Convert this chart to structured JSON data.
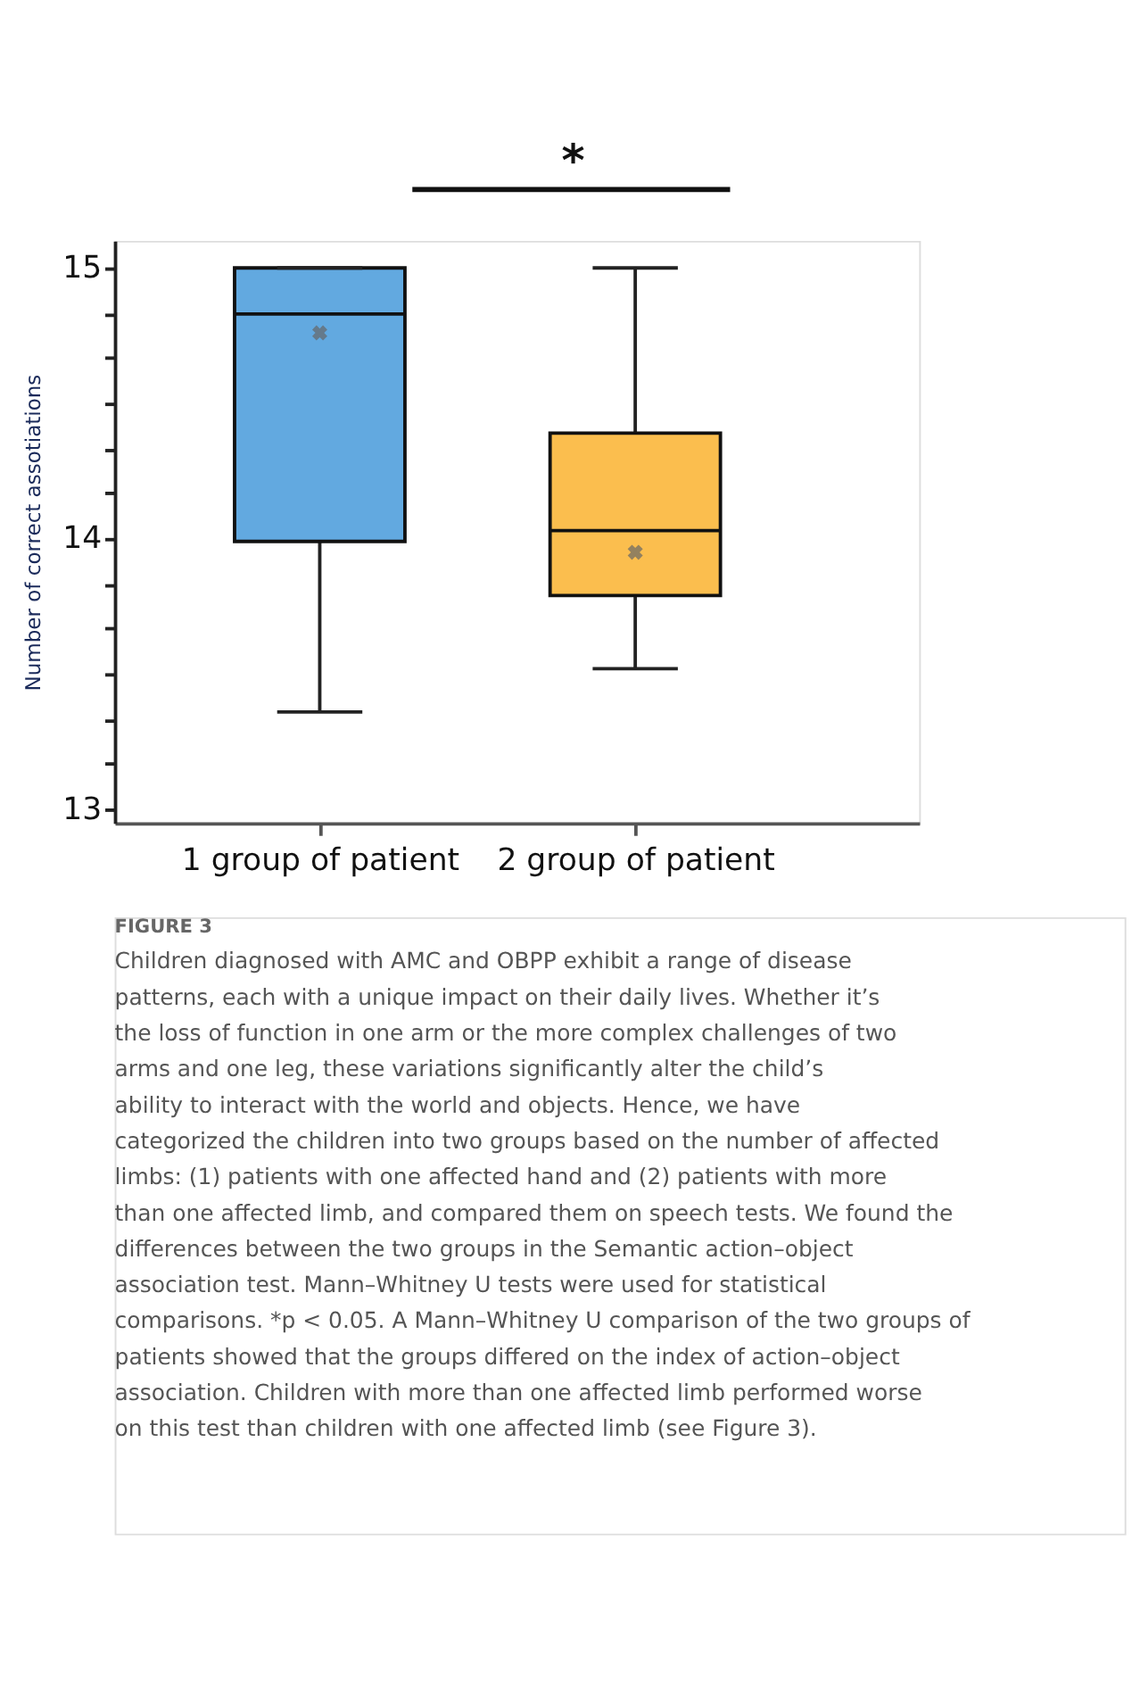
{
  "chart_data": {
    "type": "box",
    "ylabel": "Number of correct assotiations",
    "categories": [
      "1 group of patient",
      "2 group of patient"
    ],
    "colors": [
      "#62a9e0",
      "#fbbe4e"
    ],
    "boxes": [
      {
        "low": 13.36,
        "q1": 13.99,
        "median": 14.83,
        "q3": 15.0,
        "high": 15.0,
        "mean": 14.76
      },
      {
        "low": 13.52,
        "q1": 13.79,
        "median": 14.03,
        "q3": 14.39,
        "high": 15.0,
        "mean": 13.95
      }
    ],
    "ylim": [
      12.95,
      15.1
    ],
    "yticks": [
      13,
      {
        "value": 13.17,
        "label": null
      },
      {
        "value": 13.33,
        "label": null
      },
      {
        "value": 13.5,
        "label": null
      },
      {
        "value": 13.67,
        "label": null
      },
      {
        "value": 13.83,
        "label": null
      },
      14,
      {
        "value": 14.17,
        "label": null
      },
      {
        "value": 14.33,
        "label": null
      },
      {
        "value": 14.5,
        "label": null
      },
      {
        "value": 14.67,
        "label": null
      },
      {
        "value": 14.83,
        "label": null
      },
      15
    ],
    "grid": false,
    "annotations": [
      "*",
      "FIGURE 3",
      "Children diagnosed with AMC and OBPP exhibit a range of disease patterns, each with a unique impact on their daily lives. Whether it’s the loss of function in one arm or the more complex challenges of two arms and one leg, these variations significantly alter the child’s ability to interact with the world and objects. Hence, we have categorized the children into two groups based on the number of affected limbs: (1) patients with one affected hand and (2) patients with more than one affected limb, and compared them on speech tests. We found the differences between the two groups in the Semantic action–object association test. Mann–Whitney U tests were used for statistical comparisons. *p < 0.05. A Mann–Whitney U comparison of the two groups of patients showed that the groups differed on the index of action–object association. Children with more than one affected limb performed worse on this test than children with one affected limb (see Figure 3)."
    ]
  }
}
